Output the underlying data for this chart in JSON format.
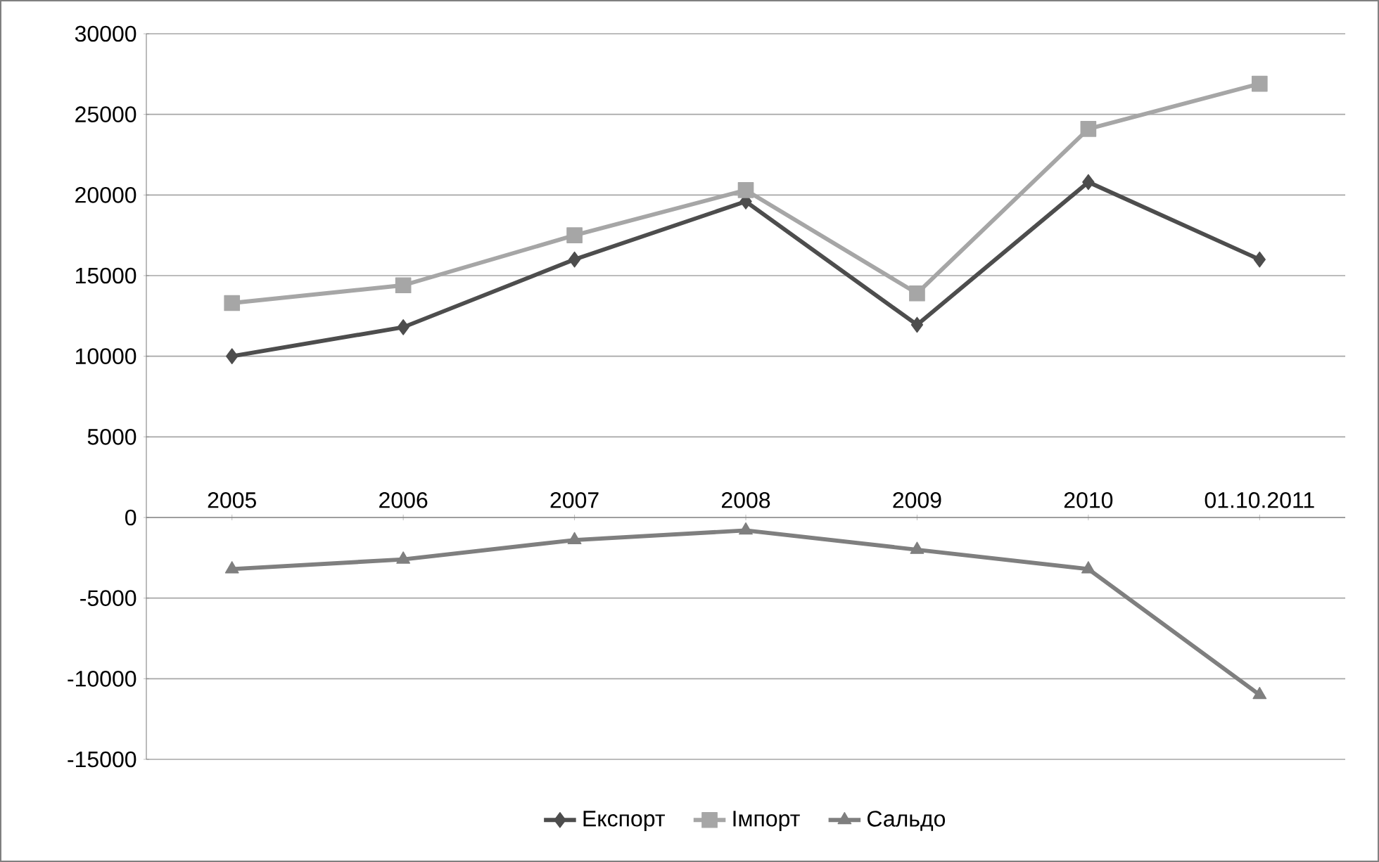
{
  "chart_data": {
    "type": "line",
    "categories": [
      "2005",
      "2006",
      "2007",
      "2008",
      "2009",
      "2010",
      "01.10.2011"
    ],
    "series": [
      {
        "name": "Експорт",
        "color": "#4d4d4d",
        "marker": "diamond",
        "values": [
          10000,
          11800,
          16000,
          19600,
          11950,
          20800,
          16000
        ]
      },
      {
        "name": "Імпорт",
        "color": "#a6a6a6",
        "marker": "square",
        "values": [
          13300,
          14400,
          17500,
          20300,
          13900,
          24100,
          26900
        ]
      },
      {
        "name": "Сальдо",
        "color": "#7f7f7f",
        "marker": "triangle",
        "values": [
          -3200,
          -2600,
          -1400,
          -800,
          -2000,
          -3200,
          -11000
        ]
      }
    ],
    "ylim": [
      -15000,
      30000
    ],
    "yticks": [
      -15000,
      -10000,
      -5000,
      0,
      5000,
      10000,
      15000,
      20000,
      25000,
      30000
    ],
    "grid": "y",
    "legend": "bottom"
  }
}
